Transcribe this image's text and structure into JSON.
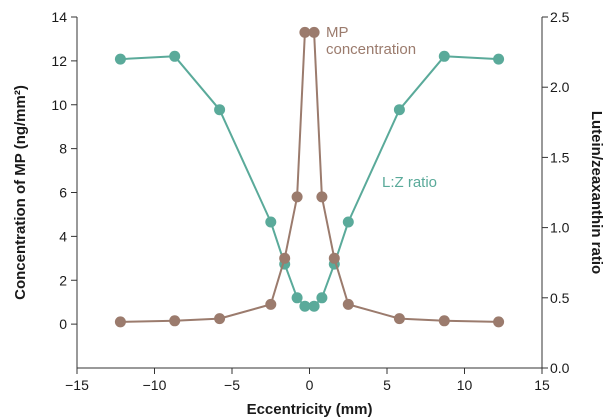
{
  "chart_data": {
    "type": "line",
    "xlabel": "Eccentricity (mm)",
    "ylabel_left": "Concentration of MP (ng/mm²)",
    "ylabel_right": "Lutein/zeaxanthin ratio",
    "xlim": [
      -15,
      15
    ],
    "ylim_left": [
      -2,
      14
    ],
    "ylim_right": [
      0.0,
      2.5
    ],
    "x_ticks": [
      -15,
      -10,
      -5,
      0,
      5,
      10,
      15
    ],
    "x_tick_labels": [
      "−15",
      "−10",
      "−5",
      "0",
      "5",
      "10",
      "15"
    ],
    "y_left_ticks": [
      0,
      2,
      4,
      6,
      8,
      10,
      12,
      14
    ],
    "y_left_tick_labels": [
      "0",
      "2",
      "4",
      "6",
      "8",
      "10",
      "12",
      "14"
    ],
    "y_right_ticks": [
      0.0,
      0.5,
      1.0,
      1.5,
      2.0,
      2.5
    ],
    "y_right_tick_labels": [
      "0.0",
      "0.5",
      "1.0",
      "1.5",
      "2.0",
      "2.5"
    ],
    "grid": false,
    "series": [
      {
        "name": "MP concentration",
        "axis": "left",
        "color": "#9b7b6d",
        "x": [
          -12.2,
          -8.7,
          -5.8,
          -2.5,
          -1.6,
          -0.8,
          -0.3,
          0.3,
          0.8,
          1.6,
          2.5,
          5.8,
          8.7,
          12.2
        ],
        "y": [
          0.1,
          0.15,
          0.25,
          0.9,
          3.0,
          5.8,
          13.3,
          13.3,
          5.8,
          3.0,
          0.9,
          0.25,
          0.15,
          0.1
        ]
      },
      {
        "name": "L:Z ratio",
        "axis": "right",
        "color": "#5aaa9a",
        "x": [
          -12.2,
          -8.7,
          -5.8,
          -2.5,
          -1.6,
          -0.8,
          -0.3,
          0.3,
          0.8,
          1.6,
          2.5,
          5.8,
          8.7,
          12.2
        ],
        "y": [
          2.2,
          2.22,
          1.84,
          1.04,
          0.74,
          0.5,
          0.44,
          0.44,
          0.5,
          0.74,
          1.04,
          1.84,
          2.22,
          2.2
        ]
      }
    ],
    "annotations": [
      {
        "text_lines": [
          "MP",
          "concentration"
        ],
        "series": "MP concentration"
      },
      {
        "text_lines": [
          "L:Z ratio"
        ],
        "series": "L:Z ratio"
      }
    ]
  }
}
